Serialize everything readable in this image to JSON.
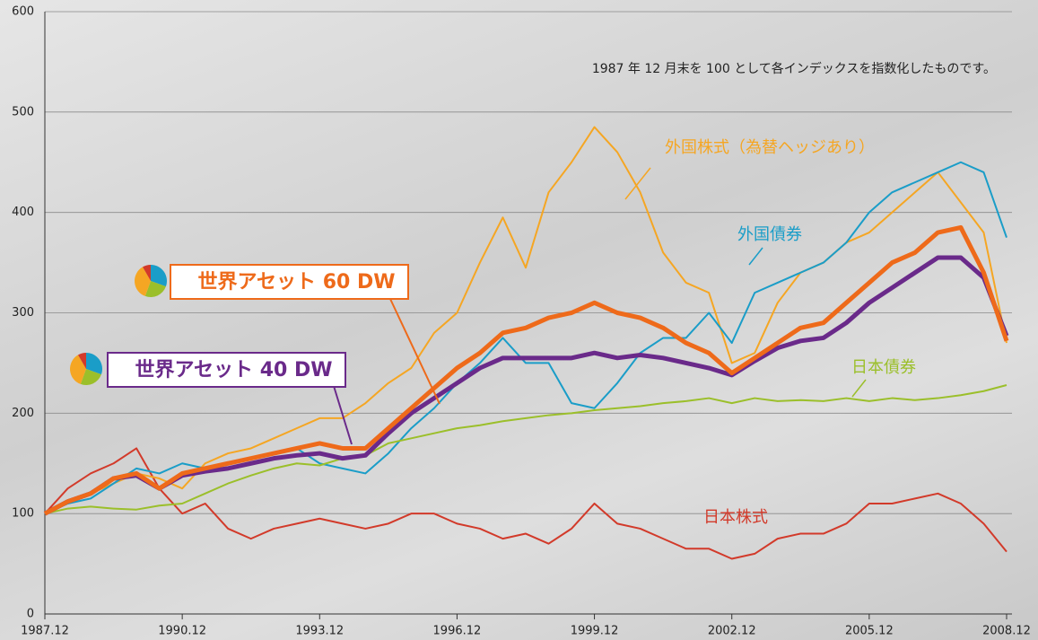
{
  "chart_data": {
    "type": "line",
    "annotation": "1987 年 12 月末を 100 として各インデックスを指数化したものです。",
    "x": [
      1987.92,
      1988.42,
      1988.92,
      1989.42,
      1989.92,
      1990.42,
      1990.92,
      1991.42,
      1991.92,
      1992.42,
      1992.92,
      1993.42,
      1993.92,
      1994.42,
      1994.92,
      1995.42,
      1995.92,
      1996.42,
      1996.92,
      1997.42,
      1997.92,
      1998.42,
      1998.92,
      1999.42,
      1999.92,
      2000.42,
      2000.92,
      2001.42,
      2001.92,
      2002.42,
      2002.92,
      2003.42,
      2003.92,
      2004.42,
      2004.92,
      2005.42,
      2005.92,
      2006.42,
      2006.92,
      2007.42,
      2007.92,
      2008.42,
      2008.92
    ],
    "xlim": [
      1987.92,
      2008.92
    ],
    "xticks": [
      {
        "value": 1987.92,
        "label": "1987.12"
      },
      {
        "value": 1990.92,
        "label": "1990.12"
      },
      {
        "value": 1993.92,
        "label": "1993.12"
      },
      {
        "value": 1996.92,
        "label": "1996.12"
      },
      {
        "value": 1999.92,
        "label": "1999.12"
      },
      {
        "value": 2002.92,
        "label": "2002.12"
      },
      {
        "value": 2005.92,
        "label": "2005.12"
      },
      {
        "value": 2008.92,
        "label": "2008.12"
      }
    ],
    "ylim": [
      0,
      600
    ],
    "yticks": [
      0,
      100,
      200,
      300,
      400,
      500,
      600
    ],
    "grid": true,
    "series": [
      {
        "name": "日本株式",
        "color": "#d23a2a",
        "width": 2,
        "values": [
          100,
          125,
          140,
          150,
          165,
          125,
          100,
          110,
          85,
          75,
          85,
          90,
          95,
          90,
          85,
          90,
          100,
          100,
          90,
          85,
          75,
          80,
          70,
          85,
          110,
          90,
          85,
          75,
          65,
          65,
          55,
          60,
          75,
          80,
          80,
          90,
          110,
          110,
          115,
          120,
          110,
          90,
          62
        ]
      },
      {
        "name": "外国株式（為替ヘッジあり）",
        "color": "#f5a623",
        "width": 2,
        "values": [
          100,
          110,
          120,
          130,
          140,
          135,
          125,
          150,
          160,
          165,
          175,
          185,
          195,
          195,
          210,
          230,
          245,
          280,
          300,
          350,
          395,
          345,
          420,
          450,
          485,
          460,
          420,
          360,
          330,
          320,
          250,
          260,
          310,
          340,
          350,
          370,
          380,
          400,
          420,
          440,
          410,
          380,
          270
        ]
      },
      {
        "name": "外国債券",
        "color": "#1a9dc8",
        "width": 2,
        "values": [
          100,
          110,
          115,
          130,
          145,
          140,
          150,
          145,
          150,
          155,
          160,
          165,
          150,
          145,
          140,
          160,
          185,
          205,
          230,
          250,
          275,
          250,
          250,
          210,
          205,
          230,
          260,
          275,
          275,
          300,
          270,
          320,
          330,
          340,
          350,
          370,
          400,
          420,
          430,
          440,
          450,
          440,
          375
        ]
      },
      {
        "name": "日本債券",
        "color": "#9bbf2a",
        "width": 2,
        "values": [
          100,
          105,
          107,
          105,
          104,
          108,
          110,
          120,
          130,
          138,
          145,
          150,
          148,
          155,
          158,
          170,
          175,
          180,
          185,
          188,
          192,
          195,
          198,
          200,
          203,
          205,
          207,
          210,
          212,
          215,
          210,
          215,
          212,
          213,
          212,
          215,
          212,
          215,
          213,
          215,
          218,
          222,
          228
        ]
      },
      {
        "name": "世界アセット 40 DW",
        "color": "#6a2a8a",
        "width": 5,
        "values": [
          100,
          112,
          120,
          135,
          138,
          125,
          138,
          142,
          145,
          150,
          155,
          158,
          160,
          155,
          158,
          180,
          200,
          215,
          230,
          245,
          255,
          255,
          255,
          255,
          260,
          255,
          258,
          255,
          250,
          245,
          238,
          252,
          265,
          272,
          275,
          290,
          310,
          325,
          340,
          355,
          355,
          335,
          277
        ]
      },
      {
        "name": "世界アセット 60 DW",
        "color": "#ee6a1a",
        "width": 5,
        "values": [
          100,
          112,
          120,
          135,
          140,
          125,
          140,
          145,
          150,
          155,
          160,
          165,
          170,
          165,
          165,
          185,
          205,
          225,
          245,
          260,
          280,
          285,
          295,
          300,
          310,
          300,
          295,
          285,
          270,
          260,
          240,
          255,
          270,
          285,
          290,
          310,
          330,
          350,
          360,
          380,
          385,
          340,
          272
        ]
      }
    ]
  }
}
